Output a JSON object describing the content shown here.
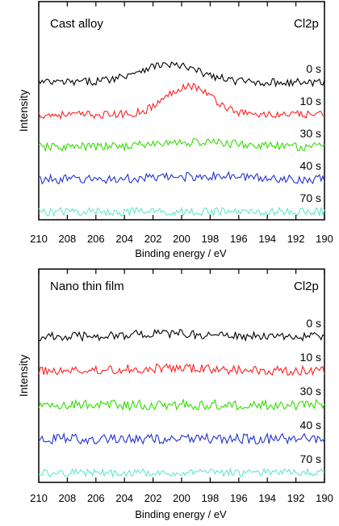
{
  "chart_data": [
    {
      "type": "line",
      "panel_label": "Cast alloy",
      "element_label": "Cl2p",
      "xlabel": "Binding energy / eV",
      "ylabel": "Intensity",
      "xlim": [
        210,
        190
      ],
      "x_reversed": true,
      "x_ticks": [
        210,
        208,
        206,
        204,
        202,
        200,
        198,
        196,
        194,
        192,
        190
      ],
      "y_ticks_shown": false,
      "grid": false,
      "series": [
        {
          "name": "0 s",
          "color": "#000000",
          "peak_center_eV": 201,
          "peak_height": 0.55,
          "peak_width_eV": 2.2,
          "noise": 0.12,
          "offset": 4.0
        },
        {
          "name": "10 s",
          "color": "#ff2020",
          "peak_center_eV": 199.5,
          "peak_height": 0.9,
          "peak_width_eV": 1.6,
          "noise": 0.12,
          "offset": 3.0
        },
        {
          "name": "30 s",
          "color": "#33dd00",
          "peak_center_eV": 199,
          "peak_height": 0.15,
          "peak_width_eV": 3.0,
          "noise": 0.13,
          "offset": 2.0
        },
        {
          "name": "40 s",
          "color": "#2233cc",
          "peak_center_eV": 198,
          "peak_height": 0.1,
          "peak_width_eV": 3.0,
          "noise": 0.14,
          "offset": 1.0
        },
        {
          "name": "70 s",
          "color": "#66e6cc",
          "peak_center_eV": 200,
          "peak_height": 0.0,
          "peak_width_eV": 3.0,
          "noise": 0.13,
          "offset": 0.0
        }
      ]
    },
    {
      "type": "line",
      "panel_label": "Nano thin film",
      "element_label": "Cl2p",
      "xlabel": "Binding energy / eV",
      "ylabel": "Intensity",
      "xlim": [
        210,
        190
      ],
      "x_reversed": true,
      "x_ticks": [
        210,
        208,
        206,
        204,
        202,
        200,
        198,
        196,
        194,
        192,
        190
      ],
      "y_ticks_shown": false,
      "grid": false,
      "series": [
        {
          "name": "0 s",
          "color": "#000000",
          "peak_center_eV": 201,
          "peak_height": 0.1,
          "peak_width_eV": 3.0,
          "noise": 0.14,
          "offset": 4.0
        },
        {
          "name": "10 s",
          "color": "#ff2020",
          "peak_center_eV": 201,
          "peak_height": 0.08,
          "peak_width_eV": 3.0,
          "noise": 0.14,
          "offset": 3.0
        },
        {
          "name": "30 s",
          "color": "#33dd00",
          "peak_center_eV": 200,
          "peak_height": 0.0,
          "peak_width_eV": 3.0,
          "noise": 0.16,
          "offset": 2.0
        },
        {
          "name": "40 s",
          "color": "#2233cc",
          "peak_center_eV": 200,
          "peak_height": 0.0,
          "peak_width_eV": 3.0,
          "noise": 0.16,
          "offset": 1.0
        },
        {
          "name": "70 s",
          "color": "#66e6cc",
          "peak_center_eV": 200,
          "peak_height": 0.0,
          "peak_width_eV": 3.0,
          "noise": 0.12,
          "offset": 0.0
        }
      ]
    }
  ]
}
